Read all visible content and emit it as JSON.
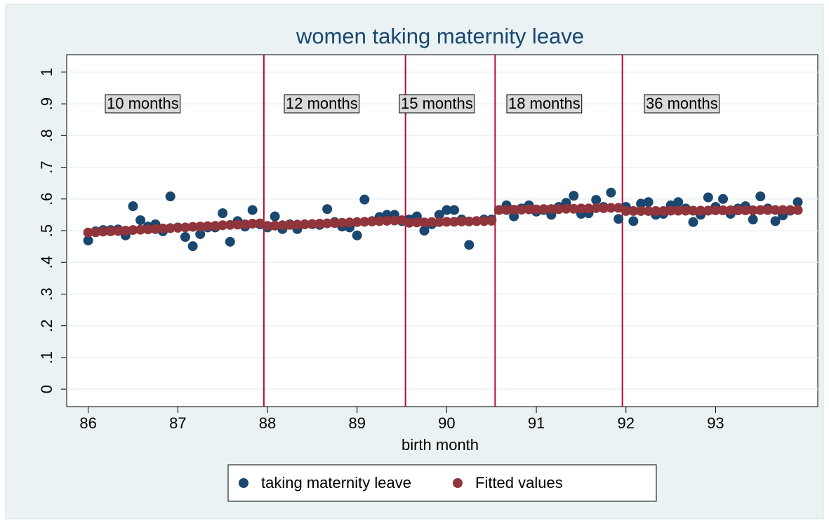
{
  "chart_data": {
    "type": "scatter",
    "title": "women taking maternity leave",
    "x_label": "birth month",
    "x": [
      86,
      86.083,
      86.167,
      86.25,
      86.333,
      86.417,
      86.5,
      86.583,
      86.667,
      86.75,
      86.833,
      86.917,
      87,
      87.083,
      87.167,
      87.25,
      87.333,
      87.417,
      87.5,
      87.583,
      87.667,
      87.75,
      87.833,
      87.917,
      88,
      88.083,
      88.167,
      88.25,
      88.333,
      88.417,
      88.5,
      88.583,
      88.667,
      88.75,
      88.833,
      88.917,
      89,
      89.083,
      89.167,
      89.25,
      89.333,
      89.417,
      89.5,
      89.583,
      89.667,
      89.75,
      89.833,
      89.917,
      90,
      90.083,
      90.167,
      90.25,
      90.333,
      90.417,
      90.5,
      90.583,
      90.667,
      90.75,
      90.833,
      90.917,
      91,
      91.083,
      91.167,
      91.25,
      91.333,
      91.417,
      91.5,
      91.583,
      91.667,
      91.75,
      91.833,
      91.917,
      92,
      92.083,
      92.167,
      92.25,
      92.333,
      92.417,
      92.5,
      92.583,
      92.667,
      92.75,
      92.833,
      92.917,
      93,
      93.083,
      93.167,
      93.25,
      93.333,
      93.417,
      93.5,
      93.583,
      93.667,
      93.75,
      93.833,
      93.917
    ],
    "series": [
      {
        "name": "taking maternity leave",
        "color": "#1a476f",
        "values": [
          0.469,
          0.498,
          0.502,
          0.502,
          0.504,
          0.485,
          0.577,
          0.533,
          0.513,
          0.52,
          0.498,
          0.608,
          0.51,
          0.48,
          0.451,
          0.489,
          0.51,
          0.51,
          0.555,
          0.465,
          0.53,
          0.513,
          0.565,
          0.52,
          0.51,
          0.545,
          0.505,
          0.52,
          0.505,
          0.52,
          0.52,
          0.518,
          0.568,
          0.527,
          0.513,
          0.51,
          0.485,
          0.598,
          0.53,
          0.543,
          0.55,
          0.55,
          0.53,
          0.535,
          0.545,
          0.5,
          0.52,
          0.55,
          0.565,
          0.565,
          0.535,
          0.455,
          0.53,
          0.535,
          0.535,
          0.565,
          0.58,
          0.545,
          0.57,
          0.58,
          0.56,
          0.565,
          0.55,
          0.575,
          0.588,
          0.61,
          0.553,
          0.555,
          0.597,
          0.575,
          0.62,
          0.537,
          0.575,
          0.53,
          0.585,
          0.59,
          0.55,
          0.553,
          0.58,
          0.59,
          0.57,
          0.527,
          0.55,
          0.605,
          0.575,
          0.6,
          0.553,
          0.57,
          0.577,
          0.535,
          0.608,
          0.57,
          0.53,
          0.548,
          0.563,
          0.59
        ]
      },
      {
        "name": "Fitted values",
        "color": "#90353b",
        "values": [
          0.494,
          0.495,
          0.497,
          0.498,
          0.499,
          0.5,
          0.502,
          0.503,
          0.504,
          0.505,
          0.507,
          0.508,
          0.509,
          0.51,
          0.512,
          0.513,
          0.514,
          0.515,
          0.517,
          0.518,
          0.519,
          0.52,
          0.522,
          0.523,
          0.515,
          0.516,
          0.517,
          0.518,
          0.519,
          0.52,
          0.521,
          0.522,
          0.523,
          0.524,
          0.525,
          0.526,
          0.527,
          0.528,
          0.529,
          0.53,
          0.531,
          0.532,
          0.533,
          0.525,
          0.526,
          0.526,
          0.527,
          0.527,
          0.528,
          0.528,
          0.529,
          0.529,
          0.53,
          0.53,
          0.531,
          0.565,
          0.565,
          0.566,
          0.566,
          0.567,
          0.567,
          0.568,
          0.568,
          0.568,
          0.569,
          0.569,
          0.57,
          0.57,
          0.571,
          0.571,
          0.572,
          0.572,
          0.562,
          0.562,
          0.562,
          0.562,
          0.562,
          0.562,
          0.563,
          0.563,
          0.563,
          0.563,
          0.563,
          0.563,
          0.564,
          0.564,
          0.564,
          0.564,
          0.564,
          0.564,
          0.565,
          0.565,
          0.565,
          0.565,
          0.565,
          0.565
        ]
      }
    ],
    "xlines": [
      87.96,
      89.54,
      90.54,
      91.96
    ],
    "xline_color": "#c10534",
    "annotations": [
      "10 months",
      "12 months",
      "15 months",
      "18 months",
      "36 months"
    ],
    "xlim": [
      85.76,
      94.14
    ],
    "ylim": [
      -0.055,
      1.055
    ],
    "xticks": [
      86,
      87,
      88,
      89,
      90,
      91,
      92,
      93
    ],
    "yticks": [
      0,
      {
        "value": 0.1,
        "label": ".1"
      },
      {
        "value": 0.2,
        "label": ".2"
      },
      {
        "value": 0.3,
        "label": ".3"
      },
      {
        "value": 0.4,
        "label": ".4"
      },
      {
        "value": 0.5,
        "label": ".5"
      },
      {
        "value": 0.6,
        "label": ".6"
      },
      {
        "value": 0.7,
        "label": ".7"
      },
      {
        "value": 0.8,
        "label": ".8"
      },
      {
        "value": 0.9,
        "label": ".9"
      },
      1
    ],
    "grid": true,
    "legend": "bottom"
  }
}
